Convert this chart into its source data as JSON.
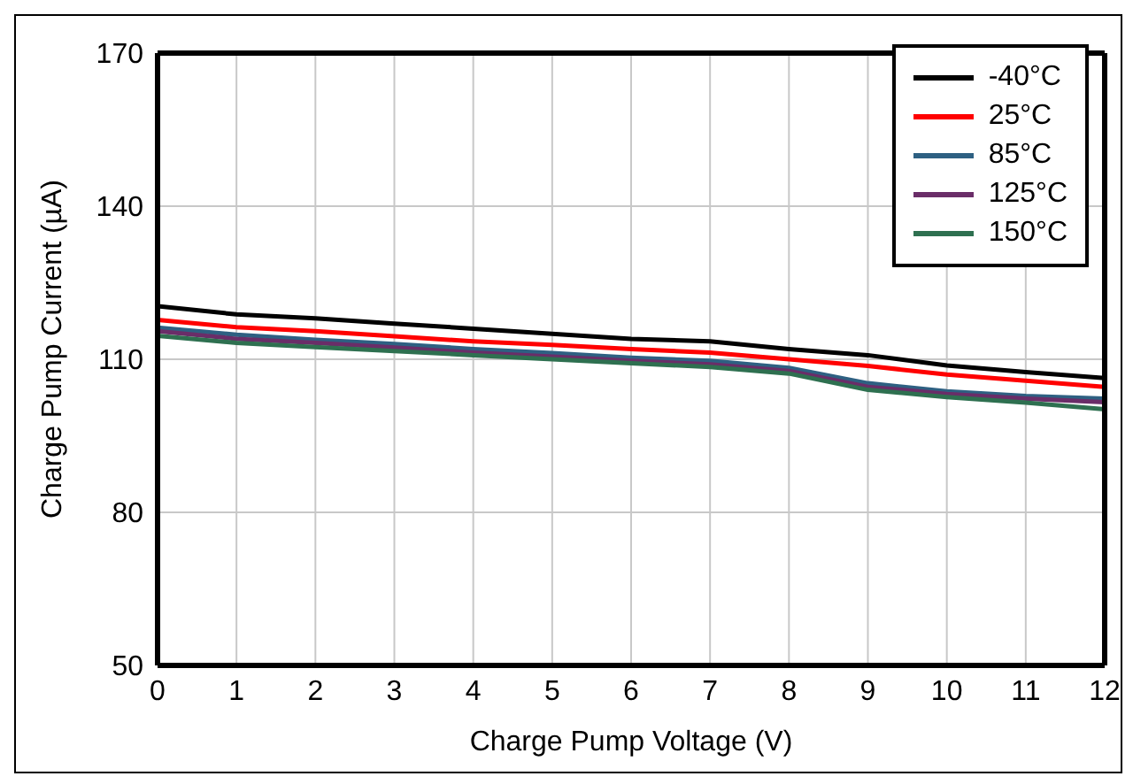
{
  "chart_data": {
    "type": "line",
    "xlabel": "Charge Pump Voltage (V)",
    "ylabel": "Charge Pump Current (µA)",
    "x": [
      0,
      1,
      2,
      3,
      4,
      5,
      6,
      7,
      8,
      9,
      10,
      11,
      12
    ],
    "series": [
      {
        "name": "-40°C",
        "color": "#000000",
        "values": [
          120.4,
          118.8,
          118,
          117,
          116,
          115,
          114,
          113.5,
          112,
          110.8,
          108.8,
          107.5,
          106.3
        ]
      },
      {
        "name": "25°C",
        "color": "#ff0000",
        "values": [
          117.7,
          116.3,
          115.5,
          114.5,
          113.5,
          112.8,
          112,
          111.3,
          110,
          108.7,
          107,
          105.8,
          104.6
        ]
      },
      {
        "name": "85°C",
        "color": "#2e6082",
        "values": [
          116.2,
          114.8,
          113.8,
          113,
          112,
          111.2,
          110.3,
          109.7,
          108.3,
          105.3,
          103.7,
          102.8,
          102.3
        ]
      },
      {
        "name": "125°C",
        "color": "#6a2d68",
        "values": [
          115.5,
          114,
          113.2,
          112.3,
          111.3,
          110.5,
          109.7,
          109,
          107.7,
          104.6,
          103.2,
          102.3,
          101.6
        ]
      },
      {
        "name": "150°C",
        "color": "#2e7050",
        "values": [
          114.6,
          113.2,
          112.4,
          111.6,
          110.8,
          110,
          109.2,
          108.5,
          107.2,
          104,
          102.6,
          101.5,
          100.2
        ]
      }
    ],
    "xlim": [
      0,
      12
    ],
    "xticks": [
      0,
      1,
      2,
      3,
      4,
      5,
      6,
      7,
      8,
      9,
      10,
      11,
      12
    ],
    "ylim": [
      50,
      170
    ],
    "yticks": [
      50,
      80,
      110,
      140,
      170
    ],
    "grid": true,
    "legend": "top right",
    "marker": "none",
    "line_style": "solid"
  }
}
